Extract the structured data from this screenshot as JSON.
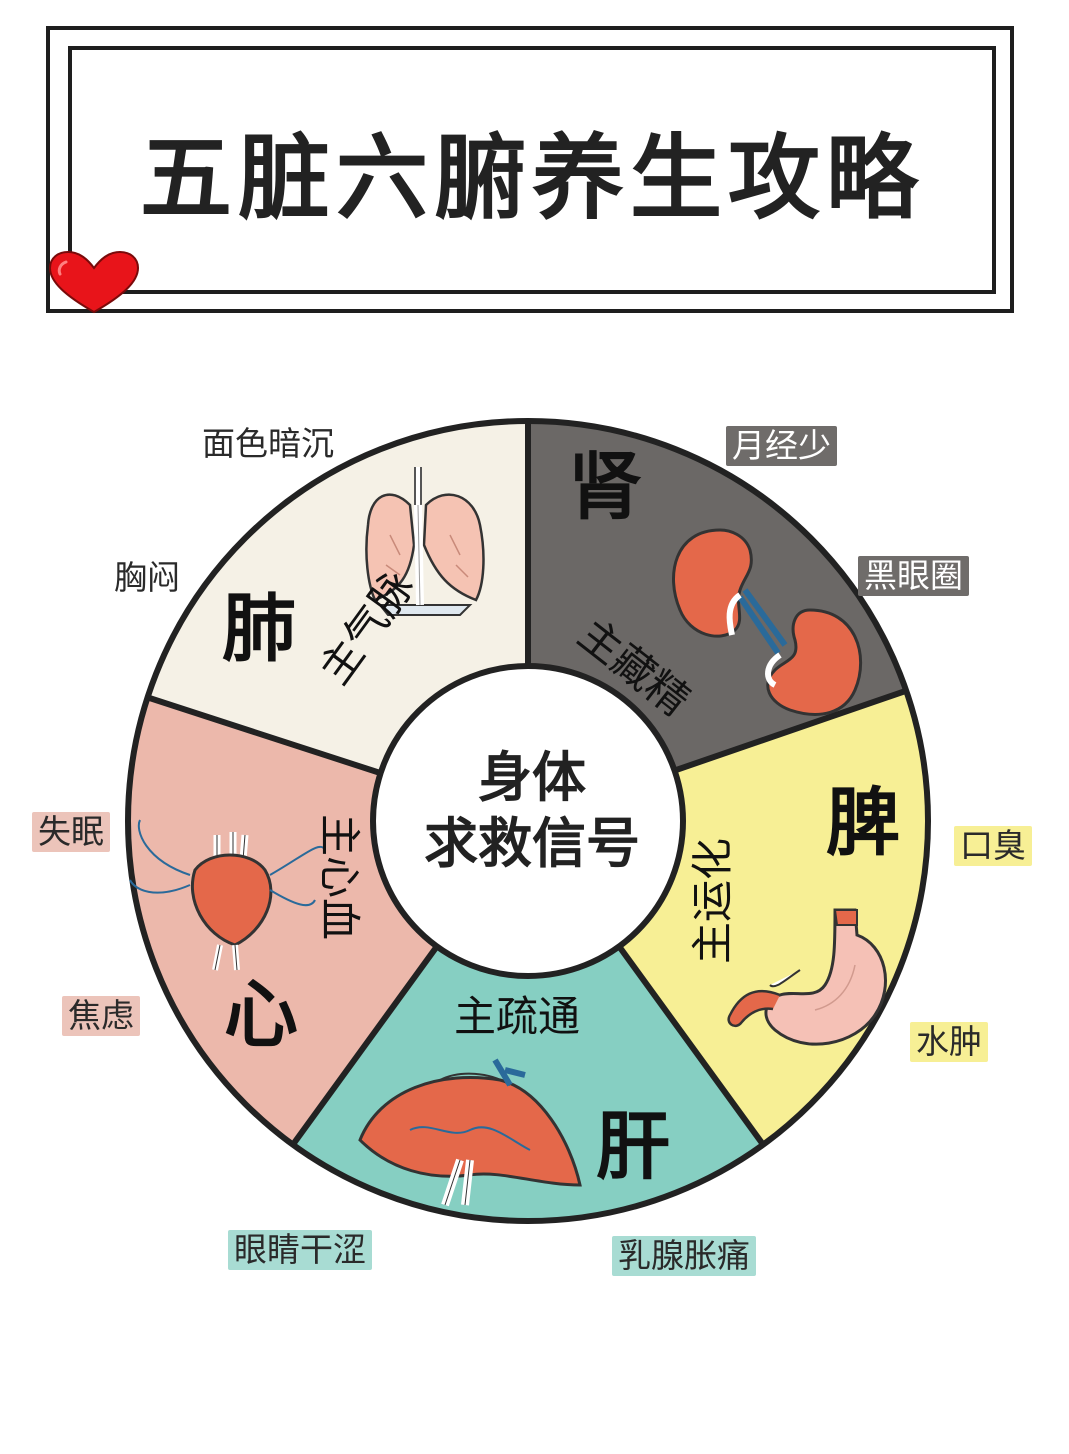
{
  "title": "五脏六腑养生攻略",
  "center": {
    "line1": "身体",
    "line2": "求救信号"
  },
  "colors": {
    "lung": "#f5f1e6",
    "kidney": "#6b6866",
    "spleen": "#f7ef95",
    "liver": "#86cfc2",
    "heart": "#ecb8ab",
    "outline": "#222222",
    "heart_icon": "#e8141a"
  },
  "organs": {
    "lung": {
      "name": "肺",
      "role": "主气脉"
    },
    "kidney": {
      "name": "肾",
      "role": "主藏精"
    },
    "spleen": {
      "name": "脾",
      "role": "主运化"
    },
    "liver": {
      "name": "肝",
      "role": "主疏通"
    },
    "heart": {
      "name": "心",
      "role": "主心血"
    }
  },
  "symptoms": {
    "lung": [
      "面色暗沉",
      "胸闷"
    ],
    "kidney": [
      "月经少",
      "黑眼圈"
    ],
    "spleen": [
      "口臭",
      "水肿"
    ],
    "liver": [
      "眼睛干涩",
      "乳腺胀痛"
    ],
    "heart": [
      "失眠",
      "焦虑"
    ]
  },
  "icons": {
    "decor": "heart-icon",
    "lung": "lungs-icon",
    "kidney": "kidneys-icon",
    "spleen": "stomach-icon",
    "liver": "liver-icon",
    "heart": "heart-organ-icon"
  }
}
